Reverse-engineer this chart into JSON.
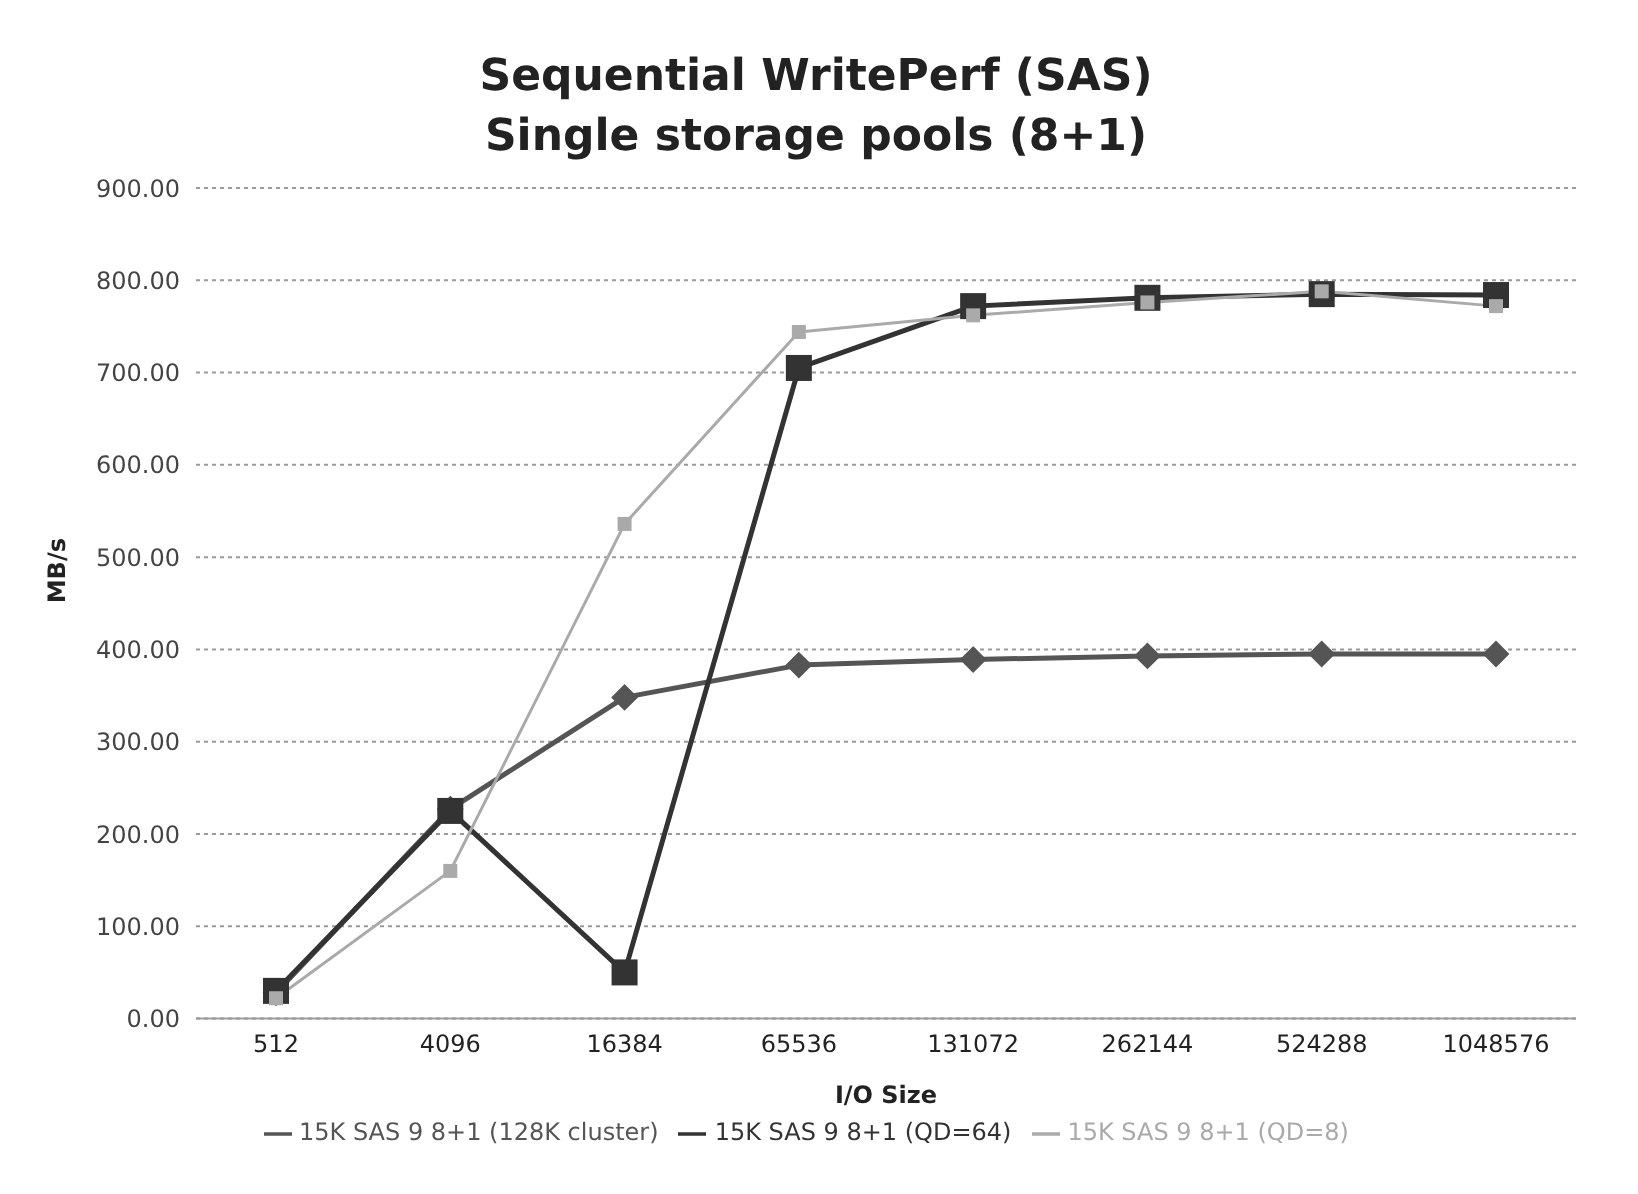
{
  "chart_data": {
    "type": "line",
    "title": "Sequential WritePerf (SAS)",
    "subtitle": "Single storage pools (8+1)",
    "xlabel": "I/O Size",
    "ylabel": "MB/s",
    "categories": [
      "512",
      "4096",
      "16384",
      "65536",
      "131072",
      "262144",
      "524288",
      "1048576"
    ],
    "series": [
      {
        "name": "15K SAS 9 8+1 (128K cluster)",
        "color": "#555555",
        "marker": "diamond",
        "values": [
          28,
          227,
          348,
          383,
          389,
          393,
          395,
          395
        ]
      },
      {
        "name": "15K SAS 9 8+1 (QD=64)",
        "color": "#333333",
        "marker": "square",
        "values": [
          30,
          225,
          50,
          705,
          772,
          781,
          785,
          784
        ]
      },
      {
        "name": "15K SAS 9 8+1 (QD=8)",
        "color": "#aaaaaa",
        "marker": "square",
        "values": [
          22,
          160,
          536,
          744,
          762,
          776,
          788,
          772
        ]
      }
    ],
    "ylim": [
      0,
      900
    ],
    "yticks": [
      {
        "value": 0,
        "label": "0.00"
      },
      {
        "value": 100,
        "label": "100.00"
      },
      {
        "value": 200,
        "label": "200.00"
      },
      {
        "value": 300,
        "label": "300.00"
      },
      {
        "value": 400,
        "label": "400.00"
      },
      {
        "value": 500,
        "label": "500.00"
      },
      {
        "value": 600,
        "label": "600.00"
      },
      {
        "value": 700,
        "label": "700.00"
      },
      {
        "value": 800,
        "label": "800.00"
      },
      {
        "value": 900,
        "label": "900.00"
      }
    ],
    "grid": "y",
    "legend": "bottom"
  }
}
